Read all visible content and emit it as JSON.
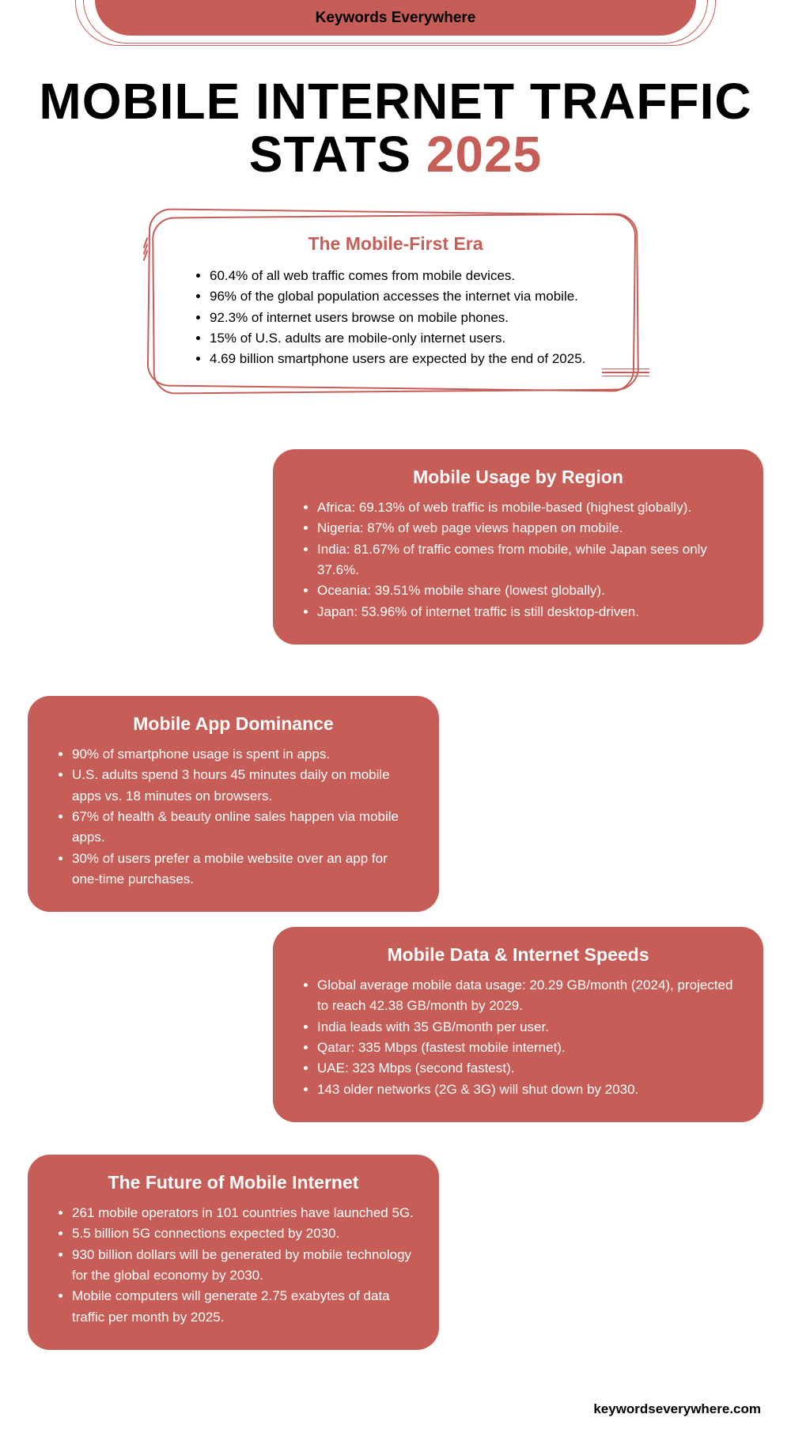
{
  "colors": {
    "accent": "#c65d57",
    "background": "#ffffff",
    "text_dark": "#000000",
    "text_light": "#ffffff"
  },
  "typography": {
    "title_fontsize": 64,
    "title_weight": 900,
    "section_title_fontsize": 23,
    "section_title_weight": 800,
    "body_fontsize": 17,
    "body_lineheight": 1.55
  },
  "brand": "Keywords Everywhere",
  "title_part1": "MOBILE INTERNET TRAFFIC STATS ",
  "title_year": "2025",
  "footer": "keywordseverywhere.com",
  "era": {
    "title": "The Mobile-First Era",
    "items": [
      "60.4% of all web traffic comes from mobile devices.",
      "96% of the global population accesses the internet via mobile.",
      "92.3% of internet users browse on mobile phones.",
      "15% of U.S. adults are mobile-only internet users.",
      "4.69 billion smartphone users are expected by the end of 2025."
    ]
  },
  "region": {
    "title": "Mobile Usage by Region",
    "items": [
      "Africa: 69.13% of web traffic is mobile-based (highest globally).",
      "Nigeria: 87% of web page views happen on mobile.",
      "India: 81.67% of traffic comes from mobile, while Japan sees only 37.6%.",
      "Oceania: 39.51% mobile share (lowest globally).",
      "Japan: 53.96% of internet traffic is still desktop-driven."
    ]
  },
  "app": {
    "title": "Mobile App Dominance",
    "items": [
      "90% of smartphone usage is spent in apps.",
      "U.S. adults spend 3 hours 45 minutes daily on mobile apps vs. 18 minutes on browsers.",
      "67% of health & beauty online sales happen via mobile apps.",
      "30% of users prefer a mobile website over an app for one-time purchases."
    ]
  },
  "speeds": {
    "title": "Mobile Data & Internet Speeds",
    "items": [
      "Global average mobile data usage: 20.29 GB/month (2024), projected to reach 42.38 GB/month by 2029.",
      "India leads with 35 GB/month per user.",
      "Qatar: 335 Mbps (fastest mobile internet).",
      "UAE: 323 Mbps (second fastest).",
      "143 older networks (2G & 3G) will shut down by 2030."
    ]
  },
  "future": {
    "title": "The Future of Mobile Internet",
    "items": [
      "261 mobile operators in 101 countries have launched 5G.",
      "5.5 billion 5G connections expected by 2030.",
      "930 billion dollars will be generated by mobile technology for the global economy by 2030.",
      "Mobile computers will generate 2.75 exabytes of data traffic per month by 2025."
    ]
  }
}
